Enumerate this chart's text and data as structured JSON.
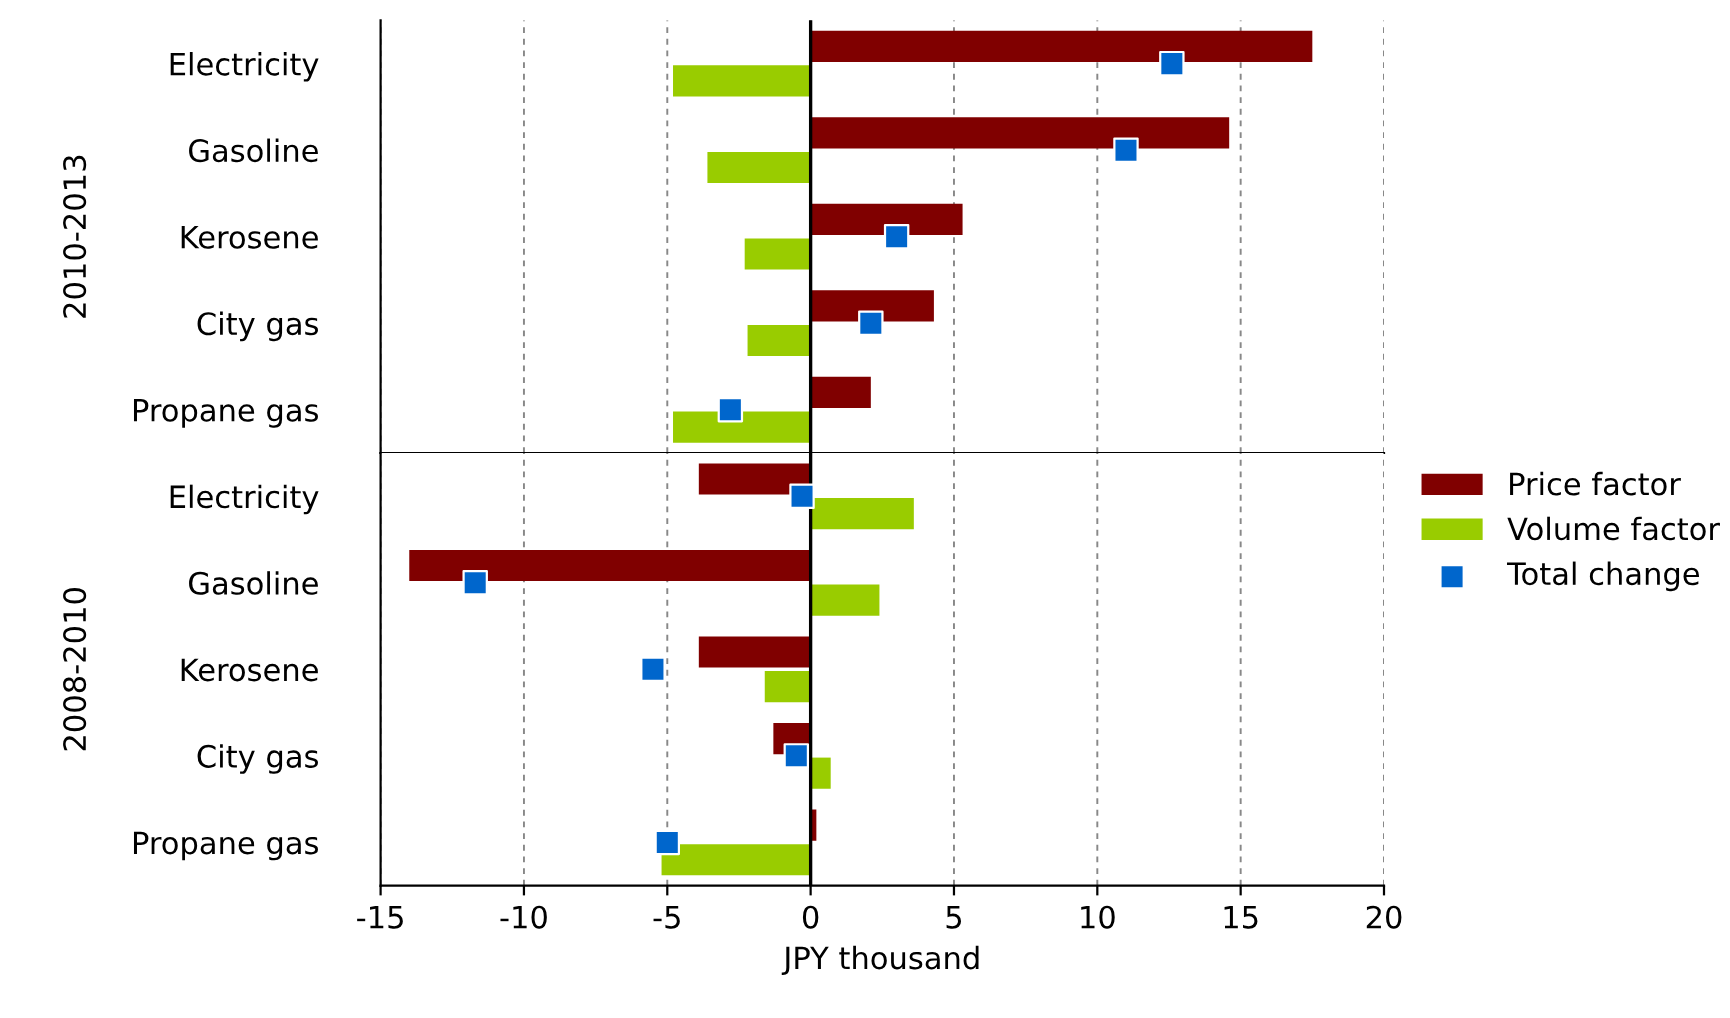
{
  "chart_data": [
    {
      "type": "bar",
      "orientation": "horizontal",
      "ylabel": "2010-2013",
      "categories": [
        "Electricity",
        "Gasoline",
        "Kerosene",
        "City gas",
        "Propane gas"
      ],
      "series": [
        {
          "color": "#800000",
          "values": [
            17.5,
            14.6,
            5.3,
            4.3,
            2.1
          ]
        },
        {
          "color": "#99cc00",
          "values": [
            -4.8,
            -3.6,
            -2.3,
            -2.2,
            -4.8
          ]
        },
        {
          "type": "scatter",
          "marker": "square",
          "color": "#0066cc",
          "values": [
            12.6,
            11.0,
            3.0,
            2.1,
            -2.8
          ]
        }
      ],
      "xlim": [
        -15,
        20
      ],
      "xticks": [
        -15,
        -10,
        -5,
        0,
        5,
        10,
        15,
        20
      ],
      "tick_labels": "y",
      "ref_lines": [
        {
          "axis": "x",
          "value": 0,
          "color": "#000000"
        }
      ],
      "grid": "x"
    },
    {
      "type": "bar",
      "orientation": "horizontal",
      "ylabel": "2008-2010",
      "xlabel": "JPY thousand",
      "categories": [
        "Electricity",
        "Gasoline",
        "Kerosene",
        "City gas",
        "Propane gas"
      ],
      "series": [
        {
          "name": "Price factor",
          "color": "#800000",
          "values": [
            -3.9,
            -14.0,
            -3.9,
            -1.3,
            0.2
          ]
        },
        {
          "name": "Volume factor",
          "color": "#99cc00",
          "values": [
            3.6,
            2.4,
            -1.6,
            0.7,
            -5.2
          ]
        },
        {
          "name": "Total change",
          "type": "scatter",
          "marker": "square",
          "color": "#0066cc",
          "values": [
            -0.3,
            -11.7,
            -5.5,
            -0.5,
            -5.0
          ]
        }
      ],
      "xlim": [
        -15,
        20
      ],
      "xticks": [
        -15,
        -10,
        -5,
        0,
        5,
        10,
        15,
        20
      ],
      "ref_lines": [
        {
          "axis": "x",
          "value": 0,
          "color": "#000000"
        }
      ],
      "grid": "x",
      "legend": "top right"
    }
  ]
}
